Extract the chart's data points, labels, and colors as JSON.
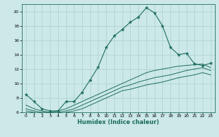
{
  "xlabel": "Humidex (Indice chaleur)",
  "ylabel": "",
  "bg_color": "#cce8e8",
  "line_color": "#1a6b5a",
  "grid_color": "#aacfcf",
  "xlim": [
    -0.5,
    23.5
  ],
  "ylim": [
    6,
    21
  ],
  "xticks": [
    0,
    1,
    2,
    3,
    4,
    5,
    6,
    7,
    8,
    9,
    10,
    11,
    12,
    13,
    14,
    15,
    16,
    17,
    18,
    19,
    20,
    21,
    22,
    23
  ],
  "yticks": [
    6,
    8,
    10,
    12,
    14,
    16,
    18,
    20
  ],
  "curve1_x": [
    0,
    1,
    2,
    3,
    4,
    5,
    6,
    7,
    8,
    9,
    10,
    11,
    12,
    13,
    14,
    15,
    16,
    17,
    18,
    19,
    20,
    21,
    22,
    23
  ],
  "curve1_y": [
    8.5,
    7.5,
    6.5,
    6.2,
    6.2,
    7.5,
    7.5,
    8.8,
    10.5,
    12.3,
    15.0,
    16.6,
    17.5,
    18.5,
    19.2,
    20.5,
    19.8,
    18.0,
    15.0,
    14.0,
    14.2,
    12.7,
    12.5,
    12.8
  ],
  "curve2_x": [
    0,
    1,
    2,
    3,
    4,
    5,
    6,
    7,
    8,
    9,
    10,
    11,
    12,
    13,
    14,
    15,
    16,
    17,
    18,
    19,
    20,
    21,
    22,
    23
  ],
  "curve2_y": [
    7.0,
    6.5,
    6.2,
    6.0,
    6.2,
    6.5,
    7.0,
    7.5,
    8.0,
    8.5,
    9.0,
    9.5,
    10.0,
    10.5,
    11.0,
    11.5,
    11.8,
    12.0,
    12.2,
    12.4,
    12.5,
    12.6,
    12.7,
    12.2
  ],
  "curve3_x": [
    0,
    1,
    2,
    3,
    4,
    5,
    6,
    7,
    8,
    9,
    10,
    11,
    12,
    13,
    14,
    15,
    16,
    17,
    18,
    19,
    20,
    21,
    22,
    23
  ],
  "curve3_y": [
    6.5,
    6.2,
    6.0,
    6.0,
    6.0,
    6.2,
    6.5,
    7.0,
    7.5,
    8.0,
    8.5,
    9.0,
    9.5,
    9.8,
    10.2,
    10.5,
    10.8,
    11.0,
    11.2,
    11.5,
    11.8,
    12.0,
    12.2,
    11.8
  ],
  "curve4_x": [
    0,
    1,
    2,
    3,
    4,
    5,
    6,
    7,
    8,
    9,
    10,
    11,
    12,
    13,
    14,
    15,
    16,
    17,
    18,
    19,
    20,
    21,
    22,
    23
  ],
  "curve4_y": [
    6.2,
    6.0,
    5.8,
    5.8,
    5.8,
    6.0,
    6.2,
    6.5,
    7.0,
    7.5,
    8.0,
    8.5,
    9.0,
    9.2,
    9.5,
    9.8,
    10.0,
    10.2,
    10.5,
    10.8,
    11.0,
    11.2,
    11.5,
    11.2
  ],
  "xlabel_fontsize": 6,
  "tick_fontsize": 4.5
}
